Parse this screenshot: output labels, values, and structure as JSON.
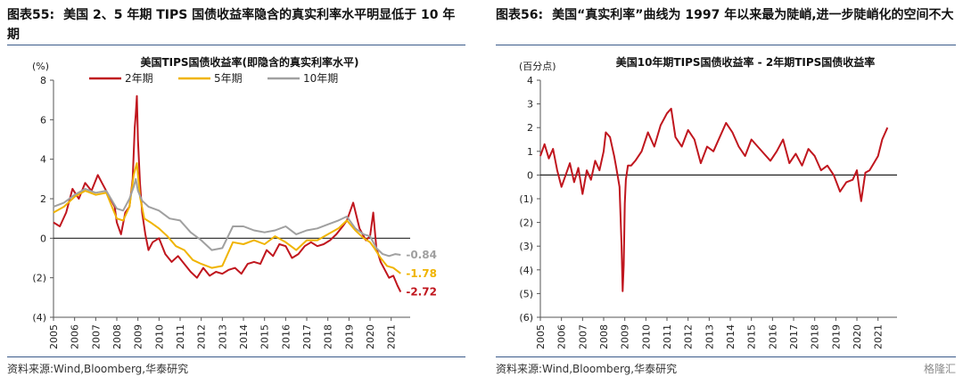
{
  "left": {
    "figure_label": "图表55:",
    "figure_title": "美国 2、5 年期 TIPS 国债收益率隐含的真实利率水平明显低于 10 年期",
    "source": "资料来源:Wind,Bloomberg,华泰研究"
  },
  "right": {
    "figure_label": "图表56:",
    "figure_title": "美国“真实利率”曲线为 1997 年以来最为陡峭,进一步陡峭化的空间不大",
    "source": "资料来源:Wind,Bloomberg,华泰研究"
  },
  "watermark": "格隆汇",
  "chart_data": [
    {
      "type": "line",
      "title": "美国TIPS国债收益率(即隐含的真实利率水平)",
      "ylabel": "(%)",
      "ylim": [
        -4,
        8
      ],
      "yticks": [
        -4,
        -2,
        0,
        2,
        4,
        6,
        8
      ],
      "ytick_labels": [
        "(4)",
        "(2)",
        "0",
        "2",
        "4",
        "6",
        "8"
      ],
      "xlim": [
        2005,
        2021.9
      ],
      "xticks": [
        "2005",
        "2006",
        "2007",
        "2008",
        "2009",
        "2010",
        "2011",
        "2012",
        "2013",
        "2014",
        "2015",
        "2016",
        "2017",
        "2018",
        "2019",
        "2020",
        "2021"
      ],
      "legend": "top",
      "grid": false,
      "series": [
        {
          "name": "2年期",
          "color": "#c0161e",
          "x": [
            2005.0,
            2005.3,
            2005.6,
            2005.9,
            2006.2,
            2006.5,
            2006.8,
            2007.1,
            2007.3,
            2007.6,
            2007.9,
            2008.0,
            2008.2,
            2008.4,
            2008.6,
            2008.75,
            2008.85,
            2008.9,
            2008.95,
            2009.0,
            2009.1,
            2009.2,
            2009.35,
            2009.5,
            2009.7,
            2010.0,
            2010.3,
            2010.6,
            2010.9,
            2011.2,
            2011.5,
            2011.8,
            2012.1,
            2012.4,
            2012.7,
            2013.0,
            2013.3,
            2013.6,
            2013.9,
            2014.2,
            2014.5,
            2014.8,
            2015.1,
            2015.4,
            2015.7,
            2016.0,
            2016.3,
            2016.6,
            2016.9,
            2017.2,
            2017.5,
            2017.8,
            2018.1,
            2018.4,
            2018.7,
            2018.9,
            2019.2,
            2019.5,
            2019.8,
            2020.0,
            2020.15,
            2020.3,
            2020.5,
            2020.7,
            2020.9,
            2021.1,
            2021.3,
            2021.45
          ],
          "values": [
            0.8,
            0.6,
            1.3,
            2.5,
            2.0,
            2.8,
            2.4,
            3.2,
            2.8,
            2.2,
            1.6,
            0.8,
            0.2,
            1.3,
            1.6,
            3.0,
            5.6,
            6.3,
            7.2,
            5.0,
            2.8,
            1.3,
            0.2,
            -0.6,
            -0.2,
            0.0,
            -0.8,
            -1.2,
            -0.9,
            -1.3,
            -1.7,
            -2.0,
            -1.5,
            -1.9,
            -1.7,
            -1.8,
            -1.6,
            -1.5,
            -1.8,
            -1.3,
            -1.2,
            -1.3,
            -0.6,
            -0.9,
            -0.3,
            -0.4,
            -1.0,
            -0.8,
            -0.4,
            -0.2,
            -0.4,
            -0.3,
            -0.1,
            0.2,
            0.6,
            0.9,
            1.8,
            0.5,
            -0.1,
            0.1,
            1.3,
            -0.5,
            -1.2,
            -1.6,
            -2.0,
            -1.9,
            -2.4,
            -2.72
          ]
        },
        {
          "name": "5年期",
          "color": "#f0b400",
          "x": [
            2005.0,
            2005.5,
            2006.0,
            2006.5,
            2007.0,
            2007.5,
            2008.0,
            2008.3,
            2008.6,
            2008.8,
            2008.95,
            2009.1,
            2009.3,
            2009.6,
            2010.0,
            2010.4,
            2010.8,
            2011.2,
            2011.6,
            2012.0,
            2012.5,
            2013.0,
            2013.5,
            2014.0,
            2014.5,
            2015.0,
            2015.5,
            2016.0,
            2016.5,
            2017.0,
            2017.5,
            2018.0,
            2018.5,
            2018.9,
            2019.3,
            2019.7,
            2020.0,
            2020.2,
            2020.5,
            2020.8,
            2021.1,
            2021.45
          ],
          "values": [
            1.3,
            1.6,
            2.1,
            2.4,
            2.2,
            2.3,
            1.0,
            0.9,
            1.6,
            3.2,
            3.8,
            2.1,
            1.0,
            0.8,
            0.5,
            0.1,
            -0.4,
            -0.6,
            -1.1,
            -1.3,
            -1.5,
            -1.4,
            -0.2,
            -0.3,
            -0.1,
            -0.3,
            0.1,
            -0.2,
            -0.6,
            -0.1,
            -0.1,
            0.2,
            0.5,
            0.9,
            0.4,
            0.0,
            -0.2,
            -0.5,
            -1.0,
            -1.4,
            -1.5,
            -1.78
          ]
        },
        {
          "name": "10年期",
          "color": "#a0a0a0",
          "x": [
            2005.0,
            2005.5,
            2006.0,
            2006.5,
            2007.0,
            2007.5,
            2008.0,
            2008.3,
            2008.6,
            2008.8,
            2008.9,
            2009.0,
            2009.2,
            2009.5,
            2010.0,
            2010.5,
            2011.0,
            2011.5,
            2012.0,
            2012.5,
            2013.0,
            2013.5,
            2014.0,
            2014.5,
            2015.0,
            2015.5,
            2016.0,
            2016.5,
            2017.0,
            2017.5,
            2018.0,
            2018.5,
            2018.9,
            2019.3,
            2019.7,
            2020.0,
            2020.3,
            2020.6,
            2020.9,
            2021.2,
            2021.45
          ],
          "values": [
            1.6,
            1.8,
            2.2,
            2.5,
            2.3,
            2.4,
            1.5,
            1.4,
            2.0,
            2.6,
            3.0,
            2.4,
            1.9,
            1.6,
            1.4,
            1.0,
            0.9,
            0.3,
            -0.1,
            -0.6,
            -0.5,
            0.6,
            0.6,
            0.4,
            0.3,
            0.4,
            0.6,
            0.2,
            0.4,
            0.5,
            0.7,
            0.9,
            1.1,
            0.5,
            0.2,
            0.1,
            -0.5,
            -0.8,
            -0.9,
            -0.8,
            -0.84
          ]
        }
      ],
      "annotations": [
        {
          "text": "-0.84",
          "series": "10年期",
          "color": "#a0a0a0"
        },
        {
          "text": "-1.78",
          "series": "5年期",
          "color": "#f0b400"
        },
        {
          "text": "-2.72",
          "series": "2年期",
          "color": "#c0161e"
        }
      ]
    },
    {
      "type": "line",
      "title": "美国10年期TIPS国债收益率 - 2年期TIPS国债收益率",
      "ylabel": "(百分点)",
      "ylim": [
        -6,
        4
      ],
      "yticks": [
        -6,
        -5,
        -4,
        -3,
        -2,
        -1,
        0,
        1,
        2,
        3,
        4
      ],
      "ytick_labels": [
        "(6)",
        "(5)",
        "(4)",
        "(3)",
        "(2)",
        "(1)",
        "0",
        "1",
        "2",
        "3",
        "4"
      ],
      "xlim": [
        2005,
        2021.9
      ],
      "xticks": [
        "2005",
        "2006",
        "2007",
        "2008",
        "2009",
        "2010",
        "2011",
        "2012",
        "2013",
        "2014",
        "2015",
        "2016",
        "2017",
        "2018",
        "2019",
        "2020",
        "2021"
      ],
      "grid": false,
      "series": [
        {
          "name": "",
          "color": "#c0161e",
          "x": [
            2005.0,
            2005.2,
            2005.4,
            2005.6,
            2005.8,
            2006.0,
            2006.2,
            2006.4,
            2006.6,
            2006.8,
            2007.0,
            2007.2,
            2007.4,
            2007.6,
            2007.8,
            2008.0,
            2008.1,
            2008.3,
            2008.5,
            2008.6,
            2008.75,
            2008.85,
            2008.9,
            2008.95,
            2009.0,
            2009.05,
            2009.15,
            2009.3,
            2009.5,
            2009.8,
            2010.1,
            2010.4,
            2010.7,
            2011.0,
            2011.2,
            2011.4,
            2011.7,
            2012.0,
            2012.3,
            2012.6,
            2012.9,
            2013.2,
            2013.5,
            2013.8,
            2014.1,
            2014.4,
            2014.7,
            2015.0,
            2015.3,
            2015.6,
            2015.9,
            2016.2,
            2016.5,
            2016.8,
            2017.1,
            2017.4,
            2017.7,
            2018.0,
            2018.3,
            2018.6,
            2018.9,
            2019.2,
            2019.5,
            2019.8,
            2020.0,
            2020.1,
            2020.2,
            2020.4,
            2020.6,
            2020.8,
            2021.0,
            2021.2,
            2021.45
          ],
          "values": [
            0.8,
            1.3,
            0.7,
            1.1,
            0.2,
            -0.5,
            0.0,
            0.5,
            -0.3,
            0.3,
            -0.8,
            0.2,
            -0.2,
            0.6,
            0.2,
            1.0,
            1.8,
            1.6,
            0.8,
            0.3,
            -0.5,
            -3.0,
            -4.9,
            -3.8,
            -1.2,
            -0.2,
            0.4,
            0.4,
            0.6,
            1.0,
            1.8,
            1.2,
            2.1,
            2.6,
            2.8,
            1.6,
            1.2,
            1.9,
            1.5,
            0.5,
            1.2,
            1.0,
            1.6,
            2.2,
            1.8,
            1.2,
            0.8,
            1.5,
            1.2,
            0.9,
            0.6,
            1.0,
            1.5,
            0.5,
            0.9,
            0.4,
            1.1,
            0.8,
            0.2,
            0.4,
            0.0,
            -0.7,
            -0.3,
            -0.2,
            0.2,
            -0.5,
            -1.1,
            0.1,
            0.2,
            0.5,
            0.8,
            1.5,
            2.0
          ]
        }
      ]
    }
  ]
}
